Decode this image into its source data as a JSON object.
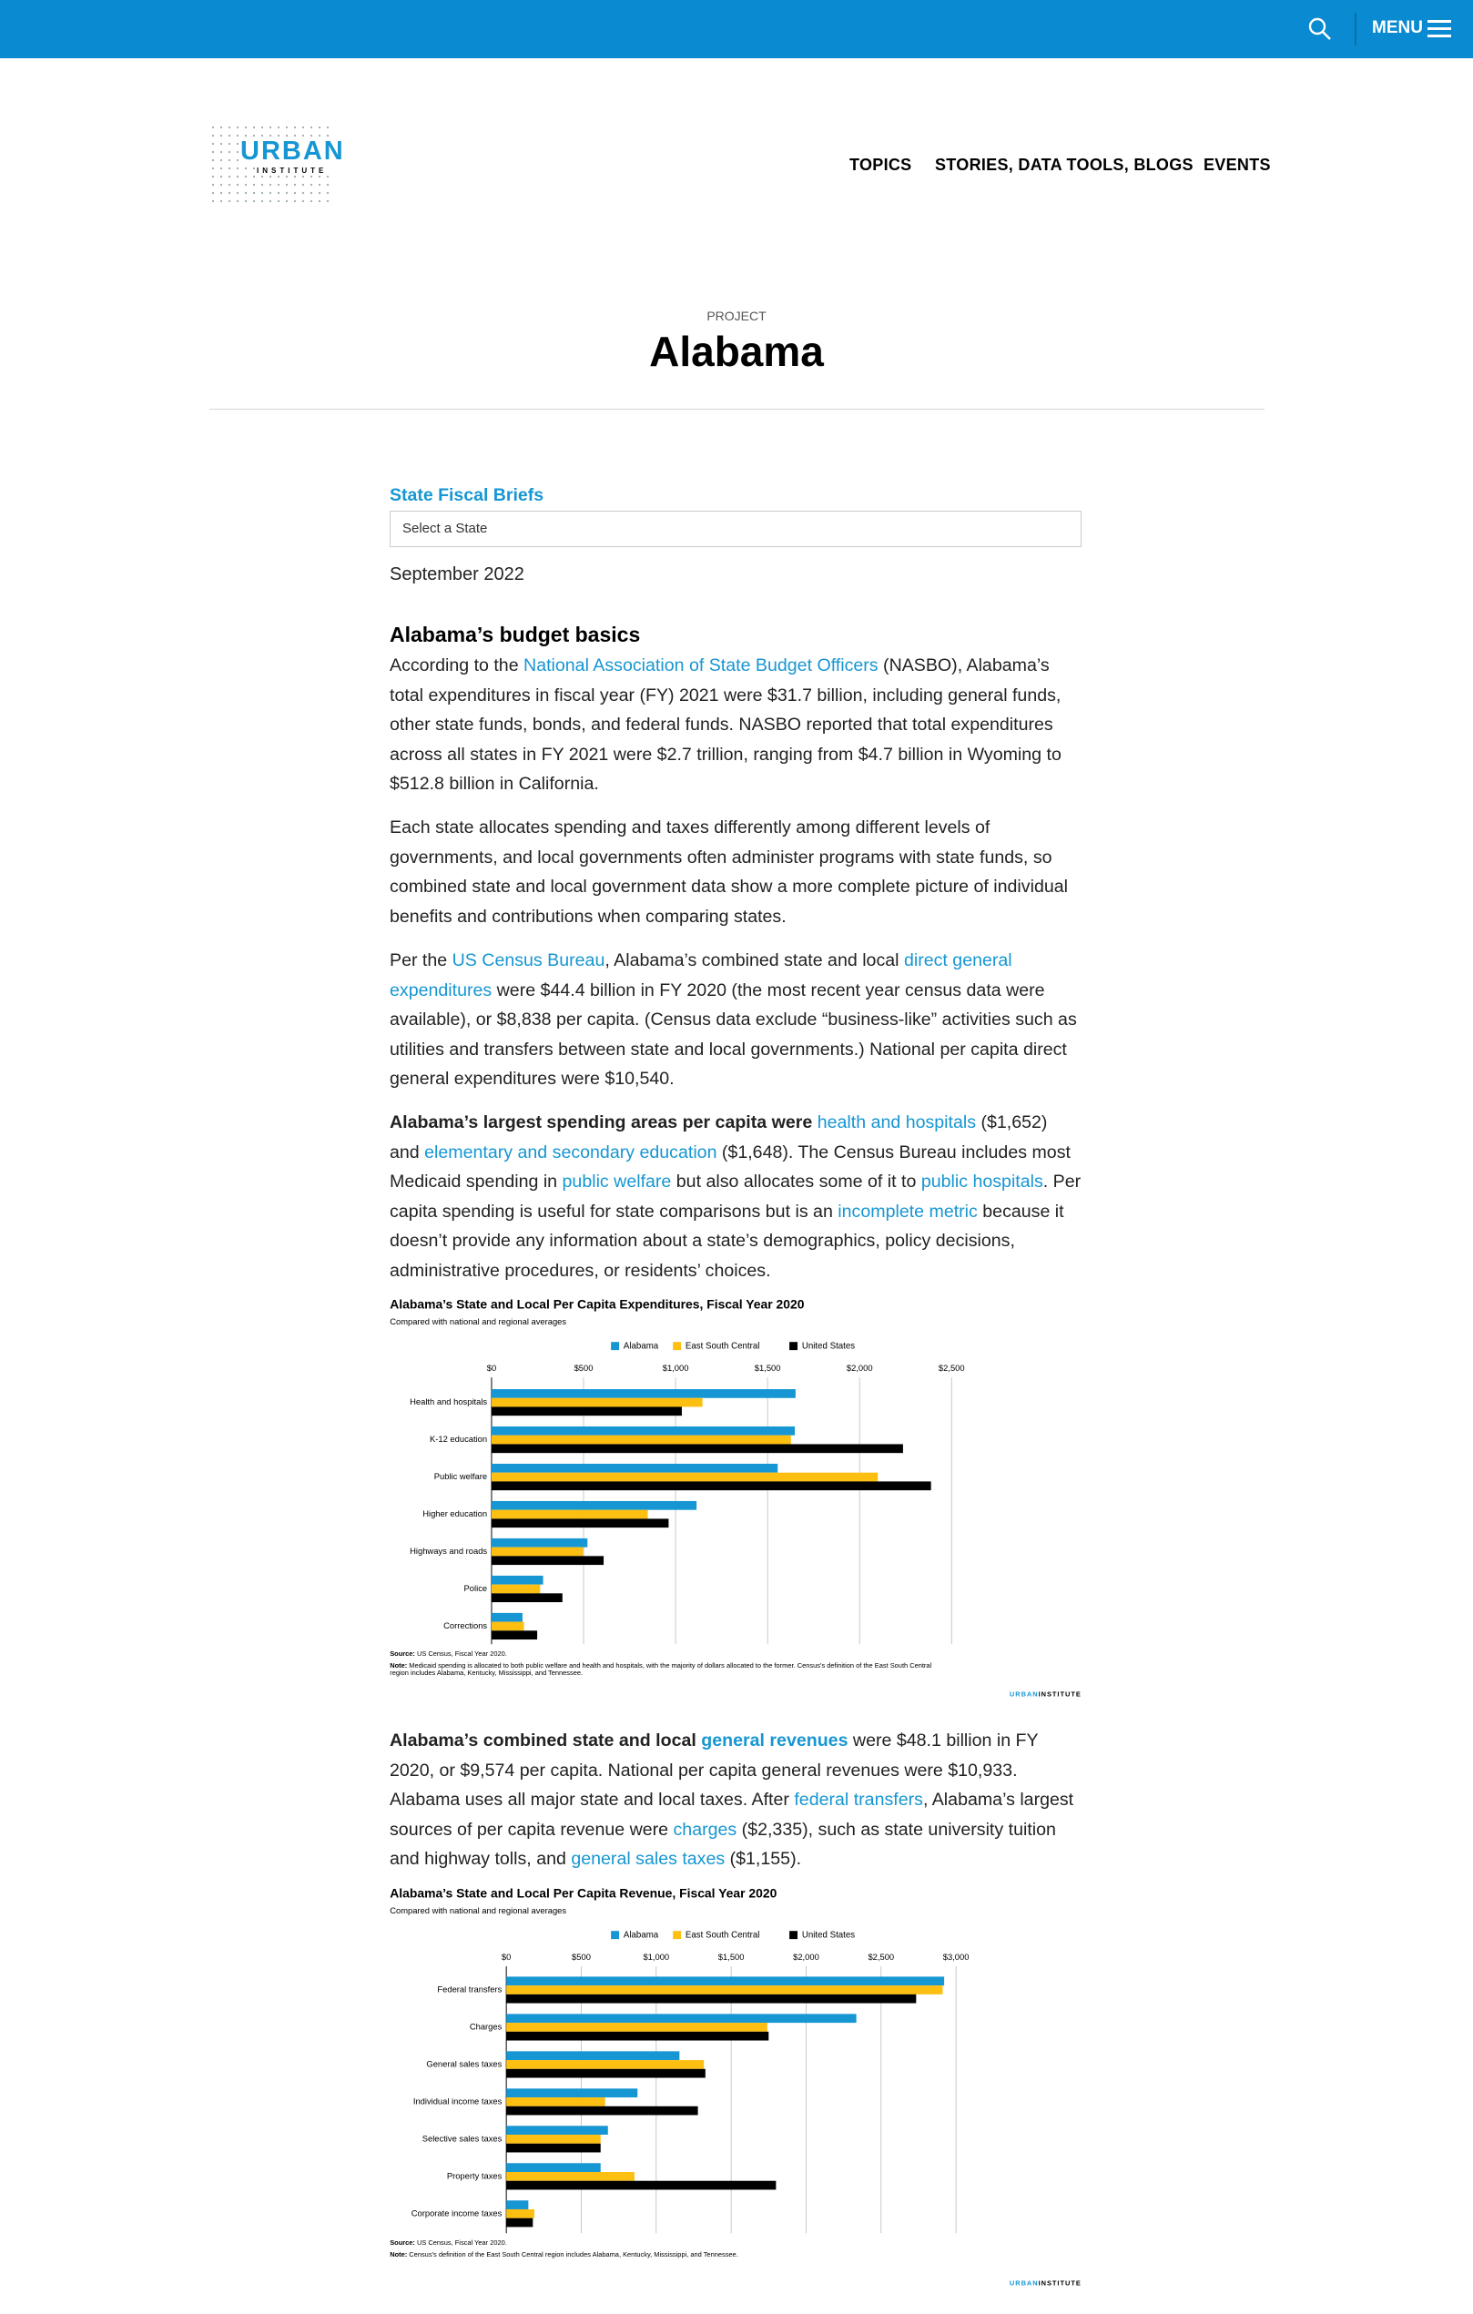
{
  "header": {
    "menu": "MENU",
    "logo": [
      "URBAN",
      "INSTITUTE"
    ],
    "nav": [
      "TOPICS",
      "STORIES, DATA TOOLS, BLOGS",
      "EVENTS"
    ]
  },
  "project": {
    "label": "PROJECT",
    "title": "Alabama"
  },
  "article": {
    "series_title": "State Fiscal Briefs",
    "select_placeholder": "Select a State",
    "date": "September 2022",
    "heading": "Alabama’s budget basics",
    "paragraphs": [
      [
        {
          "text": "According to the "
        },
        {
          "text": "National Association of State Budget Officers",
          "link": true
        },
        {
          "text": " (NASBO), Alabama’s total expenditures in fiscal year (FY) 2021 were $31.7 billion, including general funds, other state funds, bonds, and federal funds. NASBO reported that total expenditures across all states in FY 2021 were $2.7 trillion, ranging from $4.7 billion in Wyoming to $512.8 billion in California."
        }
      ],
      [
        {
          "text": "Each state allocates spending and taxes differently among different levels of governments, and local governments often administer programs with state funds, so combined state and local government data show a more complete picture of individual benefits and contributions when comparing states."
        }
      ],
      [
        {
          "text": "Per the "
        },
        {
          "text": "US Census Bureau",
          "link": true
        },
        {
          "text": ", Alabama’s combined state and local "
        },
        {
          "text": "direct general expenditures",
          "link": true
        },
        {
          "text": " were $44.4 billion in FY 2020 (the most recent year census data were available), or $8,838 per capita. (Census data exclude “business-like” activities such as utilities and transfers between state and local governments.) National per capita direct general expenditures were $10,540."
        }
      ],
      [
        {
          "text": "Alabama’s largest spending areas per capita were ",
          "bold": true
        },
        {
          "text": "health and hospitals",
          "link": true
        },
        {
          "text": " ($1,652) and "
        },
        {
          "text": "elementary and secondary education",
          "link": true
        },
        {
          "text": " ($1,648). The Census Bureau includes most Medicaid spending in "
        },
        {
          "text": "public welfare",
          "link": true
        },
        {
          "text": " but also allocates some of it to "
        },
        {
          "text": "public hospitals",
          "link": true
        },
        {
          "text": ". Per capita spending is useful for state comparisons but is an "
        },
        {
          "text": "incomplete metric",
          "link": true
        },
        {
          "text": " because it doesn’t provide any information about a state’s demographics, policy decisions, administrative procedures, or residents’ choices."
        }
      ],
      [
        {
          "text": "Alabama’s combined state and local ",
          "bold": true
        },
        {
          "text": "general revenues",
          "link": true,
          "bold": true
        },
        {
          "text": " were $48.1 billion in FY 2020, or $9,574 per capita. National per capita general revenues were $10,933. Alabama uses all major state and local taxes. After "
        },
        {
          "text": "federal transfers",
          "link": true
        },
        {
          "text": ", Alabama’s largest sources of per capita revenue were "
        },
        {
          "text": "charges",
          "link": true
        },
        {
          "text": " ($2,335), such as state university tuition and highway tolls, and "
        },
        {
          "text": "general sales taxes",
          "link": true
        },
        {
          "text": " ($1,155)."
        }
      ]
    ]
  },
  "chart_data": [
    {
      "type": "bar",
      "orientation": "horizontal",
      "title": "Alabama’s State and Local Per Capita Expenditures, Fiscal Year 2020",
      "subtitle": "Compared with national and regional averages",
      "categories": [
        "Health and hospitals",
        "K-12 education",
        "Public welfare",
        "Higher education",
        "Highways and roads",
        "Police",
        "Corrections"
      ],
      "series": [
        {
          "name": "Alabama",
          "color": "#1696d2",
          "values": [
            1652,
            1648,
            1555,
            1114,
            521,
            280,
            168
          ]
        },
        {
          "name": "East South Central",
          "color": "#fdbf11",
          "values": [
            1146,
            1627,
            2099,
            849,
            497,
            264,
            176
          ]
        },
        {
          "name": "United States",
          "color": "#000000",
          "values": [
            1034,
            2236,
            2388,
            962,
            609,
            385,
            248
          ]
        }
      ],
      "xlim": [
        0,
        2500
      ],
      "xticks": [
        {
          "value": 0,
          "label": "$0"
        },
        {
          "value": 500,
          "label": "$500"
        },
        {
          "value": 1000,
          "label": "$1,000"
        },
        {
          "value": 1500,
          "label": "$1,500"
        },
        {
          "value": 2000,
          "label": "$2,000"
        },
        {
          "value": 2500,
          "label": "$2,500"
        }
      ],
      "grid": true,
      "legend": "top",
      "source": [
        {
          "text": "Source:",
          "bold": true
        },
        {
          "text": " US Census, Fiscal Year 2020."
        }
      ],
      "note": [
        {
          "text": "Note:",
          "bold": true
        },
        {
          "text": " Medicaid spending is allocated to both public welfare and health and hospitals, with the majority of dollars allocated to the former. Census’s definition of the East South Central region includes Alabama, Kentucky, Mississippi, and Tennessee."
        }
      ],
      "branding": [
        "URBAN",
        "INSTITUTE"
      ]
    },
    {
      "type": "bar",
      "orientation": "horizontal",
      "title": "Alabama’s State and Local Per Capita Revenue, Fiscal Year 2020",
      "subtitle": "Compared with national and regional averages",
      "categories": [
        "Federal transfers",
        "Charges",
        "General sales taxes",
        "Individual income taxes",
        "Selective sales taxes",
        "Property taxes",
        "Corporate income taxes"
      ],
      "series": [
        {
          "name": "Alabama",
          "color": "#1696d2",
          "values": [
            2921,
            2335,
            1155,
            875,
            678,
            629,
            147
          ]
        },
        {
          "name": "East South Central",
          "color": "#fdbf11",
          "values": [
            2911,
            1741,
            1318,
            659,
            629,
            855,
            187
          ]
        },
        {
          "name": "United States",
          "color": "#000000",
          "values": [
            2734,
            1750,
            1328,
            1278,
            629,
            1799,
            177
          ]
        }
      ],
      "xlim": [
        0,
        3000
      ],
      "xticks": [
        {
          "value": 0,
          "label": "$0"
        },
        {
          "value": 500,
          "label": "$500"
        },
        {
          "value": 1000,
          "label": "$1,000"
        },
        {
          "value": 1500,
          "label": "$1,500"
        },
        {
          "value": 2000,
          "label": "$2,000"
        },
        {
          "value": 2500,
          "label": "$2,500"
        },
        {
          "value": 3000,
          "label": "$3,000"
        }
      ],
      "grid": true,
      "legend": "top",
      "source": [
        {
          "text": "Source:",
          "bold": true
        },
        {
          "text": " US Census, Fiscal Year 2020."
        }
      ],
      "note": [
        {
          "text": "Note:",
          "bold": true
        },
        {
          "text": " Census’s definition of the East South Central region includes Alabama, Kentucky, Mississippi, and Tennessee."
        }
      ],
      "branding": [
        "URBAN",
        "INSTITUTE"
      ]
    }
  ]
}
